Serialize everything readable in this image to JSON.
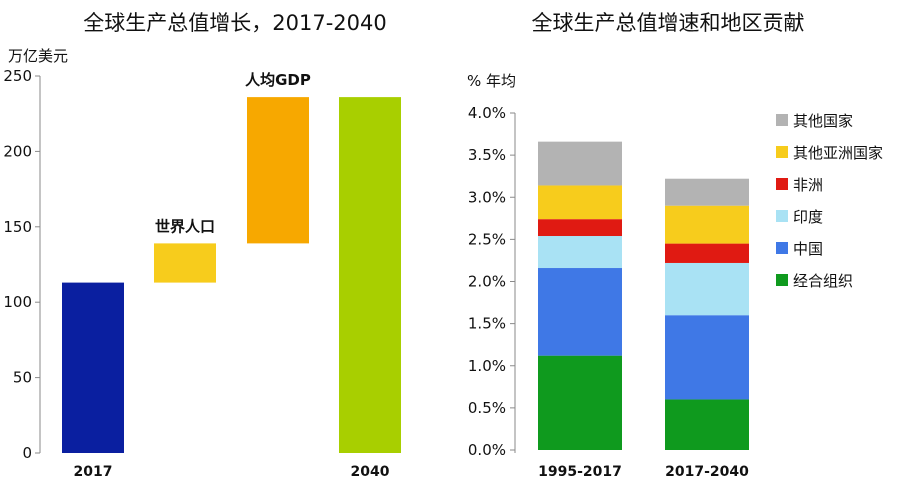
{
  "chart_data": [
    {
      "type": "waterfall",
      "title": "全球生产总值增长，2017-2040",
      "ylabel": "万亿美元",
      "ylim": [
        0,
        250
      ],
      "yticks": [
        0,
        50,
        100,
        150,
        200,
        250
      ],
      "grid": false,
      "bars": [
        {
          "label": "2017",
          "base": 0,
          "value": 113,
          "color": "#0a1fa0",
          "label_pos": "below"
        },
        {
          "label": "世界人口",
          "base": 113,
          "value": 26,
          "color": "#f7cc1c",
          "label_pos": "above"
        },
        {
          "label": "人均GDP",
          "base": 139,
          "value": 97,
          "color": "#f7a800",
          "label_pos": "above"
        },
        {
          "label": "2040",
          "base": 0,
          "value": 236,
          "color": "#a8cf00",
          "label_pos": "below"
        }
      ]
    },
    {
      "type": "bar",
      "stacked": true,
      "title": "全球生产总值增速和地区贡献",
      "ylabel": "% 年均",
      "ylim": [
        0,
        4.0
      ],
      "yticks": [
        "0.0%",
        "0.5%",
        "1.0%",
        "1.5%",
        "2.0%",
        "2.5%",
        "3.0%",
        "3.5%",
        "4.0%"
      ],
      "grid": false,
      "legend_position": "right",
      "categories": [
        "1995-2017",
        "2017-2040"
      ],
      "series": [
        {
          "name": "经合组织",
          "color": "#0f9a1e",
          "values": [
            1.12,
            0.6
          ]
        },
        {
          "name": "中国",
          "color": "#3f78e6",
          "values": [
            1.04,
            1.0
          ]
        },
        {
          "name": "印度",
          "color": "#a9e2f4",
          "values": [
            0.38,
            0.62
          ]
        },
        {
          "name": "非洲",
          "color": "#e01a12",
          "values": [
            0.2,
            0.23
          ]
        },
        {
          "name": "其他亚洲国家",
          "color": "#f7cc1c",
          "values": [
            0.4,
            0.45
          ]
        },
        {
          "name": "其他国家",
          "color": "#b3b3b3",
          "values": [
            0.52,
            0.32
          ]
        }
      ]
    }
  ]
}
